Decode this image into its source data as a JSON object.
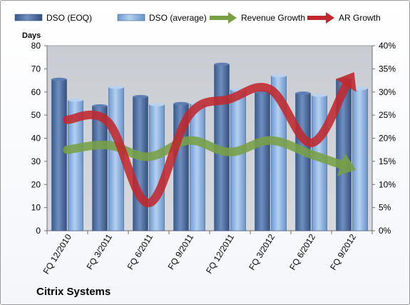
{
  "chart_data": {
    "type": "bar",
    "title": "",
    "footer_label": "Citrix Systems",
    "y_axis_left": {
      "label": "Days",
      "ylim": [
        0,
        80
      ],
      "ticks": [
        "0",
        "10",
        "20",
        "30",
        "40",
        "50",
        "60",
        "70",
        "80"
      ]
    },
    "y_axis_right": {
      "label": "",
      "ylim": [
        0,
        40
      ],
      "ticks": [
        "0%",
        "5%",
        "10%",
        "15%",
        "20%",
        "25%",
        "30%",
        "35%",
        "40%"
      ]
    },
    "categories": [
      "FQ 12/2010",
      "FQ 3/2011",
      "FQ 6/2011",
      "FQ 9/2011",
      "FQ 12/2011",
      "FQ 3/2012",
      "FQ 6/2012",
      "FQ 9/2012"
    ],
    "series": [
      {
        "name": "DSO (EOQ)",
        "kind": "bar",
        "axis": "left",
        "color": "#4f6fa3",
        "values": [
          65.5,
          54,
          58,
          55,
          72,
          60,
          59.5,
          65.5
        ]
      },
      {
        "name": "DSO (average)",
        "kind": "bar",
        "axis": "left",
        "color": "#8eb4e3",
        "values": [
          56.5,
          62,
          54.5,
          55,
          61,
          67,
          58.5,
          61.5
        ]
      },
      {
        "name": "Revenue Growth",
        "kind": "arrow-line",
        "axis": "right",
        "color": "#77a045",
        "values": [
          17.5,
          18.5,
          16,
          19.5,
          17,
          19.5,
          16.5,
          13.5
        ]
      },
      {
        "name": "AR Growth",
        "kind": "arrow-line",
        "axis": "right",
        "color": "#c0282e",
        "values": [
          24,
          23.5,
          6,
          25,
          28.5,
          30.5,
          19,
          33.5
        ]
      }
    ],
    "legend": "top",
    "grid": false
  }
}
